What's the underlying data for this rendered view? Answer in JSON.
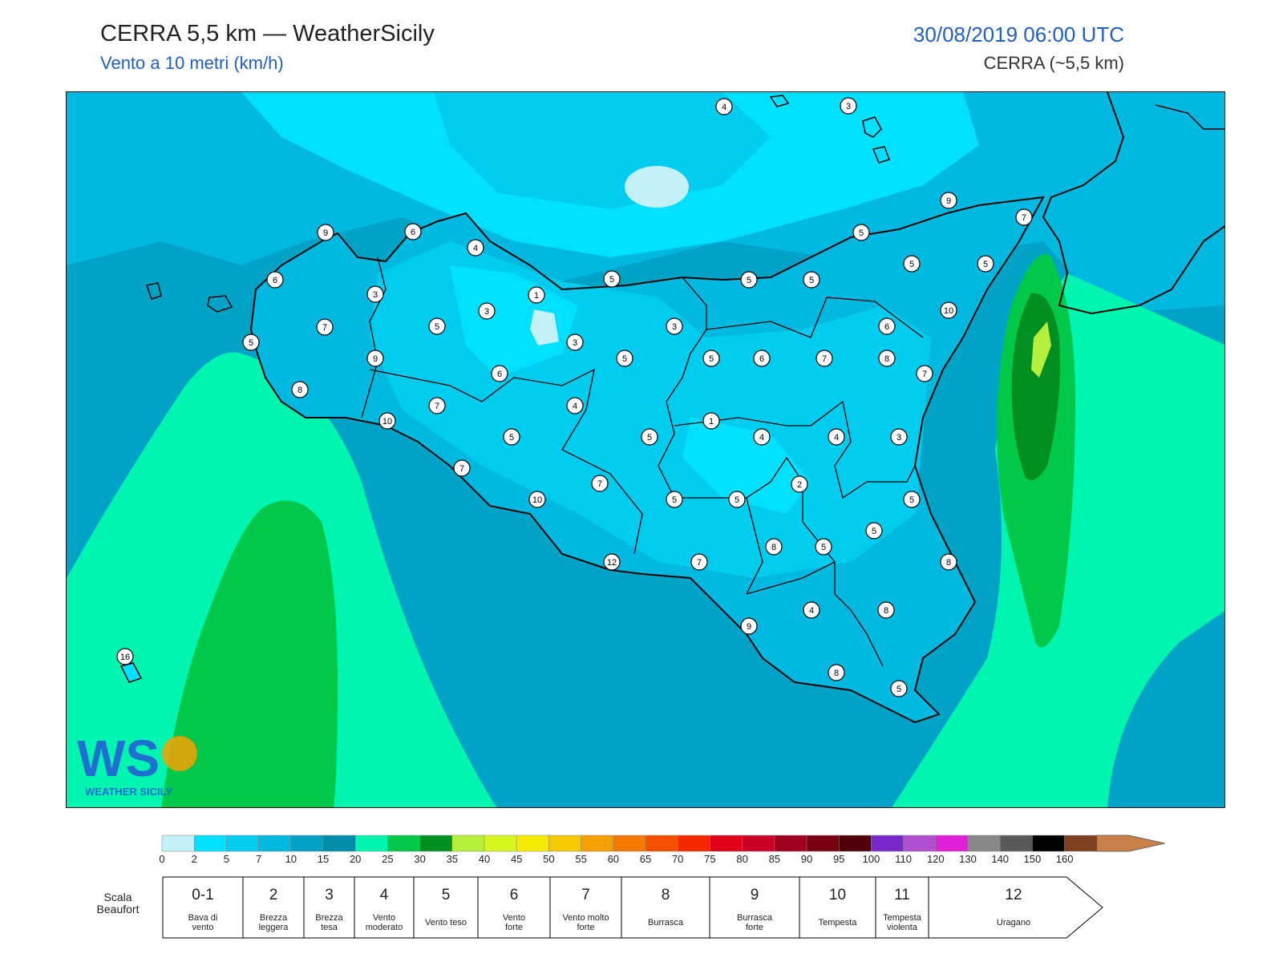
{
  "header": {
    "title": "CERRA 5,5 km — WeatherSicily",
    "subtitle": "Vento a 10 metri (km/h)",
    "datetime": "30/08/2019 06:00 UTC",
    "model": "CERRA (~5,5 km)"
  },
  "logo": {
    "text": "WEATHER SICILY",
    "letters": "WS"
  },
  "colorbar": {
    "ticks": [
      "0",
      "2",
      "5",
      "7",
      "10",
      "15",
      "20",
      "25",
      "30",
      "35",
      "40",
      "45",
      "50",
      "55",
      "60",
      "65",
      "70",
      "75",
      "80",
      "85",
      "90",
      "95",
      "100",
      "110",
      "120",
      "130",
      "140",
      "150",
      "160"
    ],
    "colors": [
      "#c4f0f8",
      "#00e0ff",
      "#00ccf0",
      "#00b8e0",
      "#00a2c6",
      "#008cab",
      "#00f5b0",
      "#00c84a",
      "#008f20",
      "#b6f03c",
      "#d8f51e",
      "#f5ec00",
      "#f5c800",
      "#f5a000",
      "#f57800",
      "#f55000",
      "#f52800",
      "#e00018",
      "#c80028",
      "#a00020",
      "#780010",
      "#500008",
      "#7828c8",
      "#b050d0",
      "#e020d8",
      "#888888",
      "#585858",
      "#000000",
      "#804020",
      "#c88048"
    ]
  },
  "beaufort": {
    "label_line1": "Scala",
    "label_line2": "Beaufort",
    "classes": [
      {
        "force": "0-1",
        "name_line1": "Bava di",
        "name_line2": "vento"
      },
      {
        "force": "2",
        "name_line1": "Brezza",
        "name_line2": "leggera"
      },
      {
        "force": "3",
        "name_line1": "Brezza",
        "name_line2": "tesa"
      },
      {
        "force": "4",
        "name_line1": "Vento",
        "name_line2": "moderato"
      },
      {
        "force": "5",
        "name_line1": "Vento teso",
        "name_line2": ""
      },
      {
        "force": "6",
        "name_line1": "Vento",
        "name_line2": "forte"
      },
      {
        "force": "7",
        "name_line1": "Vento molto",
        "name_line2": "forte"
      },
      {
        "force": "8",
        "name_line1": "Burrasca",
        "name_line2": ""
      },
      {
        "force": "9",
        "name_line1": "Burrasca",
        "name_line2": "forte"
      },
      {
        "force": "10",
        "name_line1": "Tempesta",
        "name_line2": ""
      },
      {
        "force": "11",
        "name_line1": "Tempesta",
        "name_line2": "violenta"
      },
      {
        "force": "12",
        "name_line1": "Uragano",
        "name_line2": ""
      }
    ]
  },
  "stations": [
    "4",
    "3",
    "9",
    "7",
    "9",
    "6",
    "5",
    "5",
    "5",
    "6",
    "4",
    "5",
    "5",
    "5",
    "1",
    "10",
    "3",
    "3",
    "7",
    "6",
    "3",
    "5",
    "3",
    "5",
    "5",
    "6",
    "7",
    "5",
    "7",
    "9",
    "6",
    "4",
    "8",
    "7",
    "10",
    "8",
    "7",
    "1",
    "4",
    "4",
    "3",
    "5",
    "5",
    "2",
    "5",
    "7",
    "10",
    "8",
    "5",
    "5",
    "5",
    "8",
    "5",
    "12",
    "7",
    "4",
    "8",
    "9",
    "8",
    "5",
    "16"
  ]
}
